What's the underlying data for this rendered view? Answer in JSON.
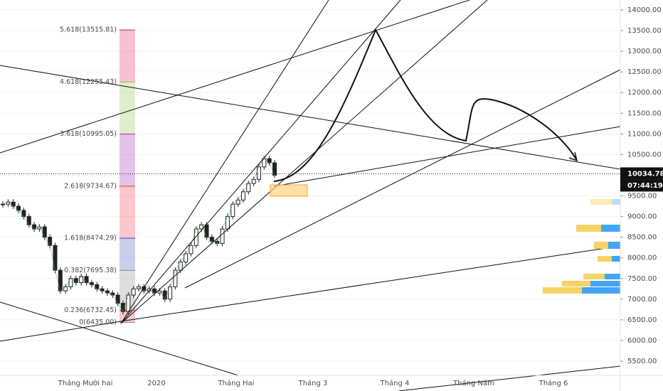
{
  "chart_data": {
    "type": "candlestick",
    "x_labels": [
      "Tháng Mười hai",
      "2020",
      "Tháng Hai",
      "Tháng 3",
      "Tháng 4",
      "Tháng Năm",
      "Tháng 6"
    ],
    "closes": [
      9300,
      9350,
      9250,
      9150,
      9000,
      8800,
      8700,
      8750,
      8500,
      8300,
      7700,
      7200,
      7300,
      7500,
      7400,
      7550,
      7400,
      7350,
      7250,
      7200,
      7150,
      7100,
      6900,
      6700,
      7100,
      7250,
      7300,
      7200,
      7250,
      7150,
      7200,
      7000,
      7300,
      7700,
      7900,
      8100,
      8300,
      8700,
      8800,
      8500,
      8400,
      8350,
      8700,
      9000,
      9300,
      9400,
      9600,
      9800,
      9900,
      10200,
      10400,
      10300,
      10000
    ],
    "ylim": [
      5500,
      14000
    ],
    "yticks": [
      {
        "value": 5500,
        "label": "5500.00"
      },
      {
        "value": 6000,
        "label": "6000.00"
      },
      {
        "value": 6500,
        "label": "6500.00"
      },
      {
        "value": 7000,
        "label": "7000.00"
      },
      {
        "value": 7500,
        "label": "7500.00"
      },
      {
        "value": 8000,
        "label": "8000.00"
      },
      {
        "value": 8500,
        "label": "8500.00"
      },
      {
        "value": 9000,
        "label": "9000.00"
      },
      {
        "value": 9500,
        "label": "9500.00"
      },
      {
        "value": 10000,
        "label": "10000.00"
      },
      {
        "value": 10500,
        "label": "10500.00"
      },
      {
        "value": 11000,
        "label": "11000.00"
      },
      {
        "value": 11500,
        "label": "11500.00"
      },
      {
        "value": 12000,
        "label": "12000.00"
      },
      {
        "value": 12500,
        "label": "12500.00"
      },
      {
        "value": 13000,
        "label": "13000.00"
      },
      {
        "value": 13500,
        "label": "13500.00"
      },
      {
        "value": 14000,
        "label": "14000.00"
      }
    ],
    "fib_levels": [
      {
        "value": 13515.81,
        "label": "5.618(13515.81)",
        "color": "#e91e63"
      },
      {
        "value": 12255.43,
        "label": "4.618(12255.43)",
        "color": "#8bc34a"
      },
      {
        "value": 10995.05,
        "label": "3.618(10995.05)",
        "color": "#9c27b0"
      },
      {
        "value": 9734.67,
        "label": "2.618(9734.67)",
        "color": "#f23645"
      },
      {
        "value": 8474.29,
        "label": "1.618(8474.29)",
        "color": "#3f51b5"
      },
      {
        "value": 7695.38,
        "label": "0.382(7695.38)",
        "color": "#888888"
      },
      {
        "value": 6732.45,
        "label": "0.236(6732.45)",
        "color": "#f23645"
      },
      {
        "value": 6435.0,
        "label": "0(6435.00)",
        "color": "#888888"
      }
    ],
    "last_price": {
      "value": 10034.78,
      "label": "10034.78"
    },
    "countdown": "07:44:19",
    "grid": true
  }
}
